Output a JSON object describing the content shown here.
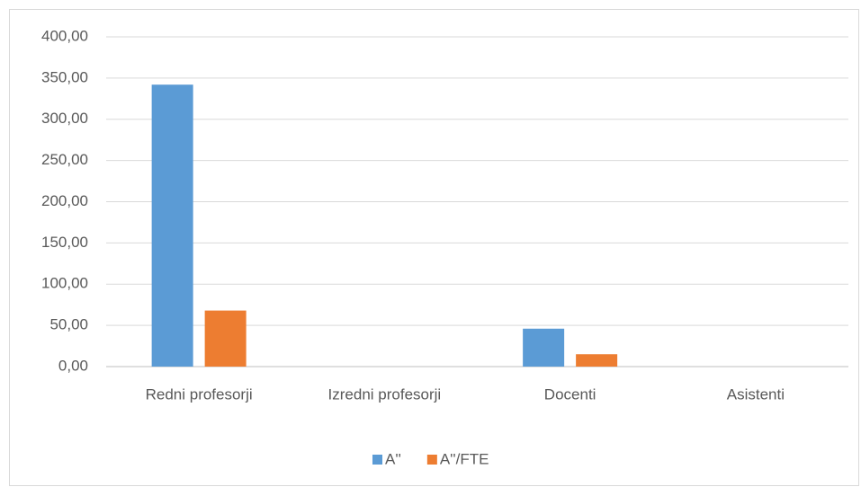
{
  "chart_data": {
    "type": "bar",
    "categories": [
      "Redni profesorji",
      "Izredni profesorji",
      "Docenti",
      "Asistenti"
    ],
    "series": [
      {
        "name": "A''",
        "color": "#5b9bd5",
        "values": [
          342,
          0,
          46,
          0
        ]
      },
      {
        "name": "A''/FTE",
        "color": "#ed7d31",
        "values": [
          68,
          0,
          15,
          0
        ]
      }
    ],
    "ylim": [
      0,
      400
    ],
    "yticks": [
      {
        "value": 0,
        "label": "0,00"
      },
      {
        "value": 50,
        "label": "50,00"
      },
      {
        "value": 100,
        "label": "100,00"
      },
      {
        "value": 150,
        "label": "150,00"
      },
      {
        "value": 200,
        "label": "200,00"
      },
      {
        "value": 250,
        "label": "250,00"
      },
      {
        "value": 300,
        "label": "300,00"
      },
      {
        "value": 350,
        "label": "350,00"
      },
      {
        "value": 400,
        "label": "400,00"
      }
    ],
    "grid": true,
    "legend": "bottom"
  }
}
